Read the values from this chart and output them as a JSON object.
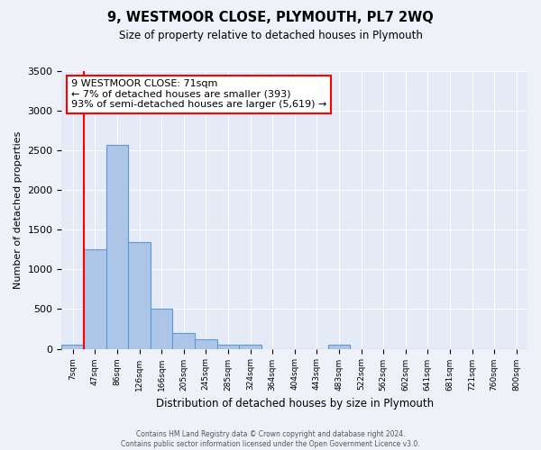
{
  "title": "9, WESTMOOR CLOSE, PLYMOUTH, PL7 2WQ",
  "subtitle": "Size of property relative to detached houses in Plymouth",
  "xlabel": "Distribution of detached houses by size in Plymouth",
  "ylabel": "Number of detached properties",
  "bin_labels": [
    "7sqm",
    "47sqm",
    "86sqm",
    "126sqm",
    "166sqm",
    "205sqm",
    "245sqm",
    "285sqm",
    "324sqm",
    "364sqm",
    "404sqm",
    "443sqm",
    "483sqm",
    "522sqm",
    "562sqm",
    "602sqm",
    "641sqm",
    "681sqm",
    "721sqm",
    "760sqm",
    "800sqm"
  ],
  "bar_heights": [
    50,
    1250,
    2570,
    1340,
    500,
    200,
    120,
    50,
    50,
    0,
    0,
    0,
    50,
    0,
    0,
    0,
    0,
    0,
    0,
    0,
    0
  ],
  "bar_color": "#adc6e8",
  "bar_edgecolor": "#5b9bd5",
  "vline_color": "red",
  "ylim": [
    0,
    3500
  ],
  "yticks": [
    0,
    500,
    1000,
    1500,
    2000,
    2500,
    3000,
    3500
  ],
  "annotation_title": "9 WESTMOOR CLOSE: 71sqm",
  "annotation_line2": "← 7% of detached houses are smaller (393)",
  "annotation_line3": "93% of semi-detached houses are larger (5,619) →",
  "footer_line1": "Contains HM Land Registry data © Crown copyright and database right 2024.",
  "footer_line2": "Contains public sector information licensed under the Open Government Licence v3.0.",
  "background_color": "#eef2f8",
  "plot_background_color": "#e4eaf6"
}
